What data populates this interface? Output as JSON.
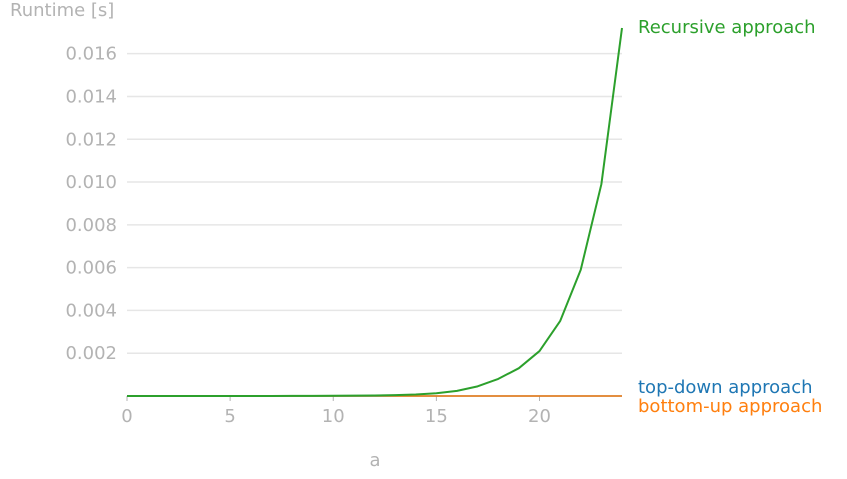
{
  "chart_data": {
    "type": "line",
    "xlabel": "a",
    "ylabel": "Runtime [s]",
    "xlim": [
      0,
      24
    ],
    "ylim": [
      0,
      0.0172
    ],
    "xticks": [
      "0",
      "5",
      "10",
      "15",
      "20"
    ],
    "yticks": [
      "0.002",
      "0.004",
      "0.006",
      "0.008",
      "0.010",
      "0.012",
      "0.014",
      "0.016"
    ],
    "grid": "horizontal",
    "legend": "inline-right",
    "x": [
      0,
      1,
      2,
      3,
      4,
      5,
      6,
      7,
      8,
      9,
      10,
      11,
      12,
      13,
      14,
      15,
      16,
      17,
      18,
      19,
      20,
      21,
      22,
      23,
      24
    ],
    "series": [
      {
        "name": "Recursive approach",
        "color": "#2ca02c",
        "values": [
          0,
          0,
          0,
          0,
          0,
          1e-06,
          2e-06,
          3e-06,
          4e-06,
          6e-06,
          9e-06,
          1.5e-05,
          2.5e-05,
          4e-05,
          7e-05,
          0.00013,
          0.00024,
          0.00045,
          0.0008,
          0.0013,
          0.0021,
          0.0035,
          0.0059,
          0.0099,
          0.0172
        ]
      },
      {
        "name": "top-down approach",
        "color": "#1f77b4",
        "values": [
          0,
          0,
          0,
          0,
          0,
          0,
          0,
          0,
          0,
          0,
          0,
          0,
          0,
          0,
          0,
          0,
          0,
          0,
          0,
          0,
          0,
          0,
          0,
          0,
          0
        ]
      },
      {
        "name": "bottom-up approach",
        "color": "#ff7f0e",
        "values": [
          0,
          0,
          0,
          0,
          0,
          0,
          0,
          0,
          0,
          0,
          0,
          0,
          0,
          0,
          0,
          0,
          0,
          0,
          0,
          0,
          0,
          0,
          0,
          0,
          0
        ]
      }
    ]
  }
}
